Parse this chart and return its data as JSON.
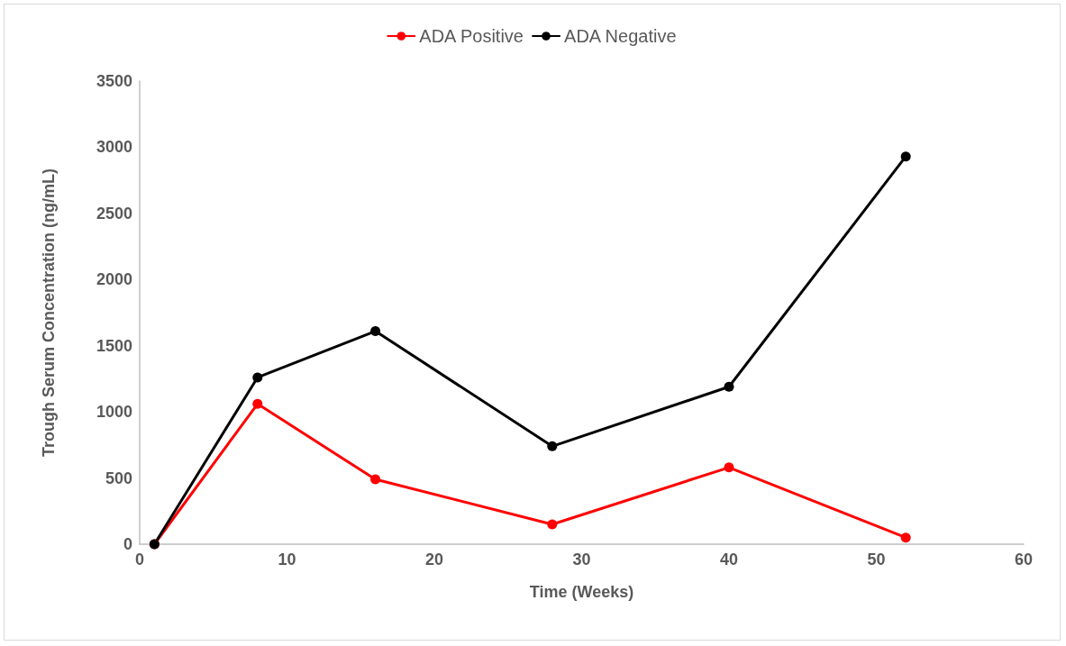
{
  "chart_data": {
    "type": "line",
    "xlabel": "Time (Weeks)",
    "ylabel": "Trough Serum Concentration (ng/mL)",
    "x": [
      1,
      8,
      16,
      28,
      40,
      52
    ],
    "series": [
      {
        "name": "ADA Positive",
        "color": "#ff0000",
        "values": [
          0,
          1060,
          490,
          150,
          580,
          50
        ]
      },
      {
        "name": "ADA Negative",
        "color": "#000000",
        "values": [
          0,
          1260,
          1610,
          740,
          1190,
          2930
        ]
      }
    ],
    "xlim": [
      0,
      60
    ],
    "xticks": [
      0,
      10,
      20,
      30,
      40,
      50,
      60
    ],
    "ylim": [
      0,
      3500
    ],
    "yticks": [
      0,
      500,
      1000,
      1500,
      2000,
      2500,
      3000,
      3500
    ],
    "grid": false,
    "legend": "top",
    "marker": "circle",
    "line_style": "solid"
  }
}
